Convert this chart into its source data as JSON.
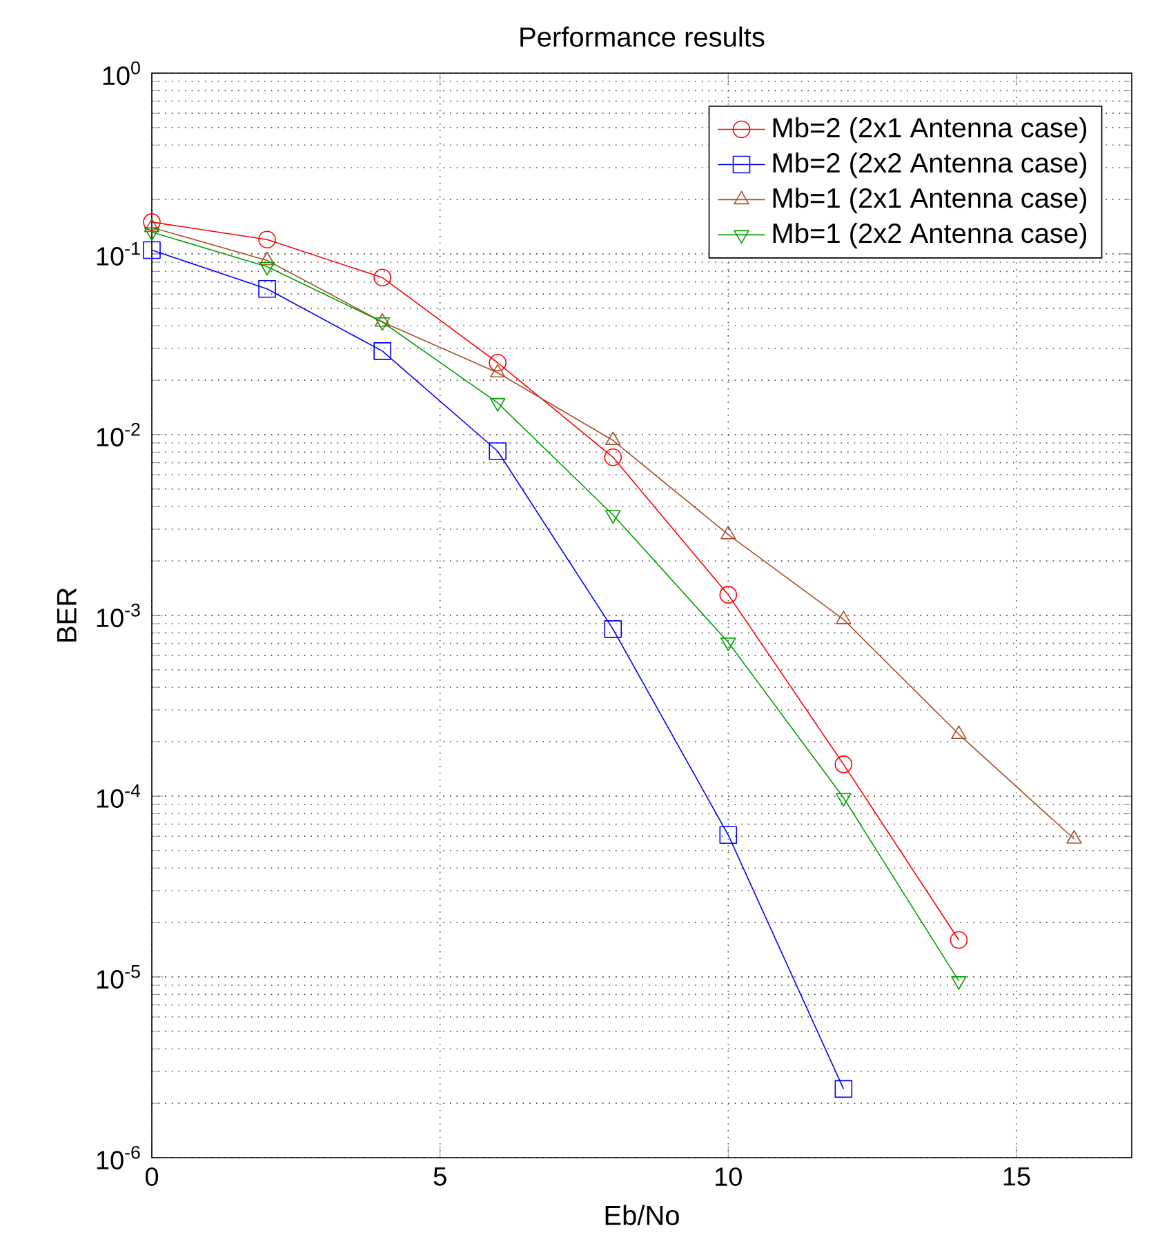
{
  "chart_data": {
    "type": "line",
    "title": "Performance results",
    "xlabel": "Eb/No",
    "ylabel": "BER",
    "log": "y",
    "grid": true,
    "legend": "top right",
    "xlim": [
      0,
      17
    ],
    "xticks": [
      0,
      5,
      10,
      15
    ],
    "ylim": [
      1e-06,
      1
    ],
    "yticks": [
      {
        "value": 1e-06,
        "label": "10$^{-6}$"
      },
      {
        "value": 1e-05,
        "label": "10$^{-5}$"
      },
      {
        "value": 0.0001,
        "label": "10$^{-4}$"
      },
      {
        "value": 0.001,
        "label": "10$^{-3}$"
      },
      {
        "value": 0.01,
        "label": "10$^{-2}$"
      },
      {
        "value": 0.1,
        "label": "10$^{-1}$"
      },
      {
        "value": 1,
        "label": "10$^{0}$"
      }
    ],
    "series": [
      {
        "name": "Mb=2 (2x1 Antenna case)",
        "color": "#ff0000",
        "marker": "circle",
        "x": [
          0,
          2,
          4,
          6,
          8,
          10,
          12,
          14
        ],
        "values": [
          0.15,
          0.12,
          0.074,
          0.025,
          0.0075,
          0.0013,
          0.00015,
          1.6e-05
        ]
      },
      {
        "name": "Mb=2 (2x2 Antenna case)",
        "color": "#0000ff",
        "marker": "square",
        "x": [
          0,
          2,
          4,
          6,
          8,
          10,
          12
        ],
        "values": [
          0.105,
          0.064,
          0.029,
          0.0081,
          0.00084,
          6.1e-05,
          2.4e-06
        ]
      },
      {
        "name": "Mb=1 (2x1 Antenna case)",
        "color": "#a0522d",
        "marker": "triangle",
        "x": [
          0,
          2,
          4,
          6,
          8,
          10,
          12,
          14,
          16
        ],
        "values": [
          0.14,
          0.092,
          0.042,
          0.022,
          0.0093,
          0.0028,
          0.00095,
          0.00022,
          5.8e-05
        ]
      },
      {
        "name": "Mb=1 (2x2 Antenna case)",
        "color": "#00a000",
        "marker": "triangle down",
        "x": [
          0,
          2,
          4,
          6,
          8,
          10,
          12,
          14
        ],
        "values": [
          0.132,
          0.085,
          0.042,
          0.015,
          0.0036,
          0.00071,
          9.8e-05,
          9.5e-06
        ]
      }
    ]
  }
}
